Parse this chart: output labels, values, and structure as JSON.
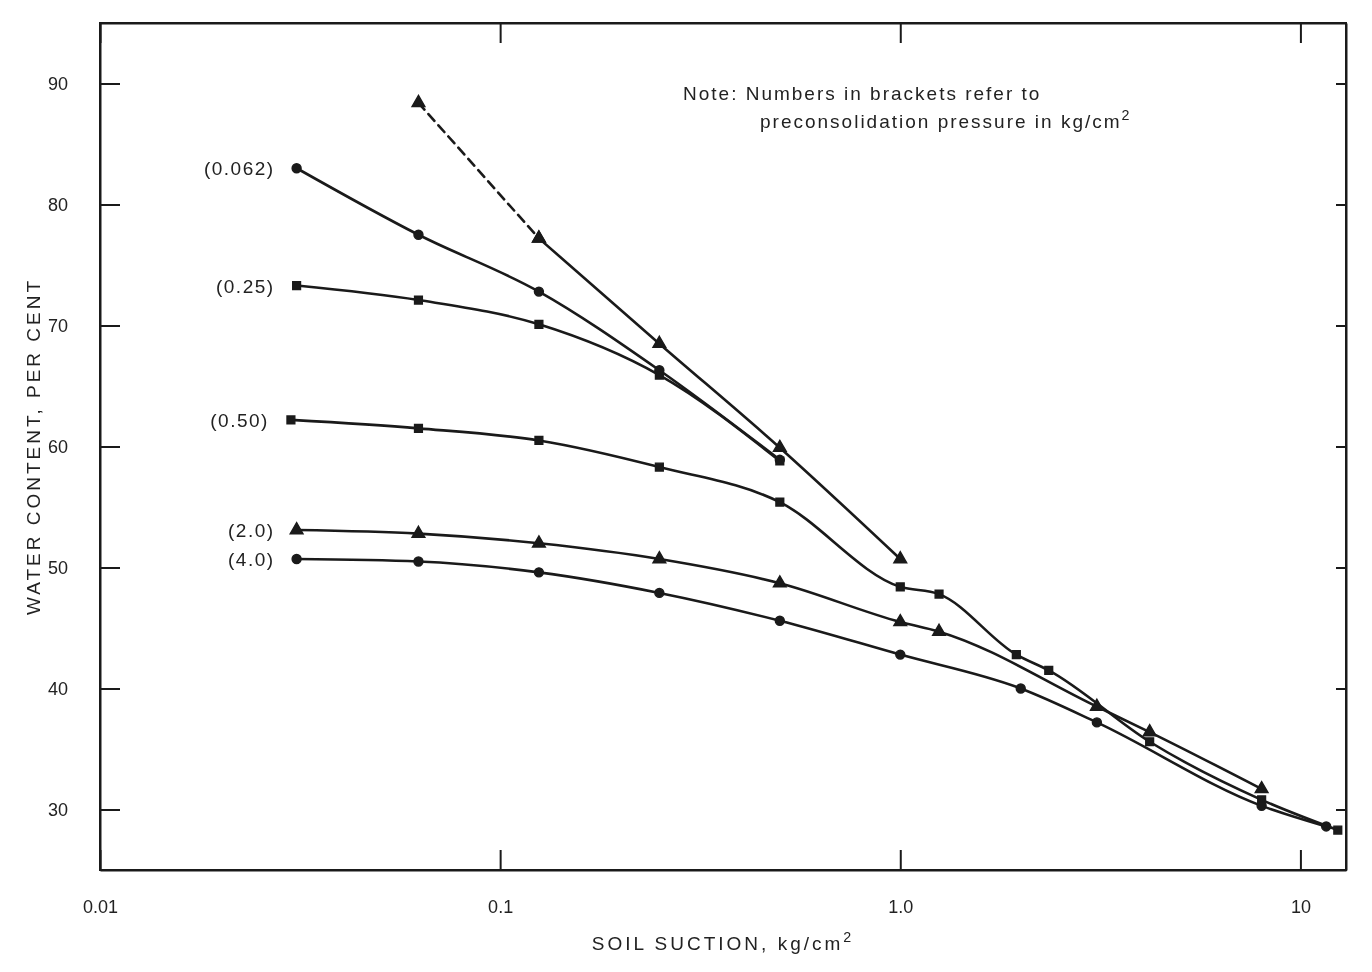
{
  "chart_data": {
    "type": "line",
    "xlabel": "SOIL SUCTION, kg/cm$^{2}$",
    "ylabel": "WATER CONTENT, PER CENT",
    "annotations": [
      "Note: Numbers in brackets refer to\npreconsolidation pressure in kg/cm$^{2}$"
    ],
    "log": "x",
    "xlim": [
      0.01,
      13
    ],
    "xticks": [
      0.01,
      0.1,
      {
        "value": 1,
        "label": "1.0"
      },
      10
    ],
    "ylim": [
      25,
      95
    ],
    "yticks": [
      30,
      40,
      50,
      60,
      70,
      80,
      90
    ],
    "grid": false,
    "line_style": "solid",
    "series": [
      {
        "x": [
          0.0625,
          0.125
        ],
        "values": [
          88.4,
          77.2
        ],
        "color": "#1a1a1a",
        "marker": "triangle",
        "line_style": "dashed"
      },
      {
        "x": [
          0.125,
          0.25,
          0.5,
          1.0
        ],
        "values": [
          77.2,
          68.5,
          59.9,
          50.7
        ],
        "color": "#1a1a1a",
        "marker": "triangle"
      },
      {
        "name": "(0.062)",
        "x": [
          0.031,
          0.0625,
          0.125,
          0.25,
          0.5
        ],
        "values": [
          83.0,
          77.5,
          72.8,
          66.3,
          58.9
        ],
        "color": "#1a1a1a",
        "marker": "circle"
      },
      {
        "name": "(0.25)",
        "x": [
          0.031,
          0.0625,
          0.125,
          0.25,
          0.5
        ],
        "values": [
          73.3,
          72.1,
          70.1,
          65.9,
          58.8
        ],
        "color": "#1a1a1a",
        "marker": "square"
      },
      {
        "name": "(0.50)",
        "x": [
          0.03,
          0.0625,
          0.125,
          0.25,
          0.5,
          1.0,
          1.25,
          1.95,
          2.35,
          4.2,
          8,
          12.4
        ],
        "values": [
          62.2,
          61.5,
          60.5,
          58.3,
          55.4,
          48.4,
          47.8,
          42.8,
          41.5,
          35.6,
          30.8,
          28.3
        ],
        "color": "#1a1a1a",
        "marker": "square"
      },
      {
        "name": "(2.0)",
        "x": [
          0.031,
          0.0625,
          0.125,
          0.25,
          0.5,
          1.0,
          1.25,
          3.1,
          4.2,
          8
        ],
        "values": [
          53.1,
          52.8,
          52.0,
          50.7,
          48.7,
          45.5,
          44.7,
          38.5,
          36.4,
          31.7
        ],
        "color": "#1a1a1a",
        "marker": "triangle"
      },
      {
        "name": "(4.0)",
        "x": [
          0.031,
          0.0625,
          0.125,
          0.25,
          0.5,
          1.0,
          2.0,
          3.1,
          8,
          11.6
        ],
        "values": [
          50.7,
          50.5,
          49.6,
          47.9,
          45.6,
          42.8,
          40.0,
          37.2,
          30.3,
          28.6
        ],
        "color": "#1a1a1a",
        "marker": "circle"
      }
    ]
  }
}
